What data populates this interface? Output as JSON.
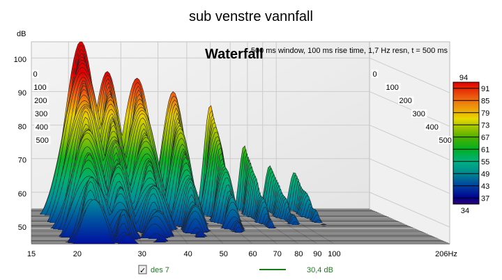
{
  "chart_data": {
    "type": "waterfall",
    "title": "sub venstre vannfall",
    "plot_label": "Waterfall",
    "info": "500 ms window, 100 ms rise time,  1,7 Hz resn, t = 500 ms",
    "ylabel": "dB",
    "ylim": [
      45,
      105
    ],
    "yticks": [
      50,
      60,
      70,
      80,
      90,
      100
    ],
    "xlim": [
      15,
      206
    ],
    "xticks": [
      15,
      20,
      30,
      40,
      50,
      60,
      70,
      80,
      90,
      100
    ],
    "xmax_label": "206Hz",
    "time_ticks_ms": [
      "0",
      "100",
      "200",
      "300",
      "400",
      "500"
    ],
    "colorbar": {
      "min": "34",
      "max": "94",
      "ticks": [
        "91",
        "85",
        "79",
        "73",
        "67",
        "61",
        "55",
        "49",
        "43",
        "37"
      ]
    },
    "peak": {
      "freq_hz": 22,
      "level_db": 95
    },
    "legend": {
      "name": "des 7",
      "checked": true,
      "value": "30,4 dB",
      "color": "#1a7a1a"
    }
  }
}
